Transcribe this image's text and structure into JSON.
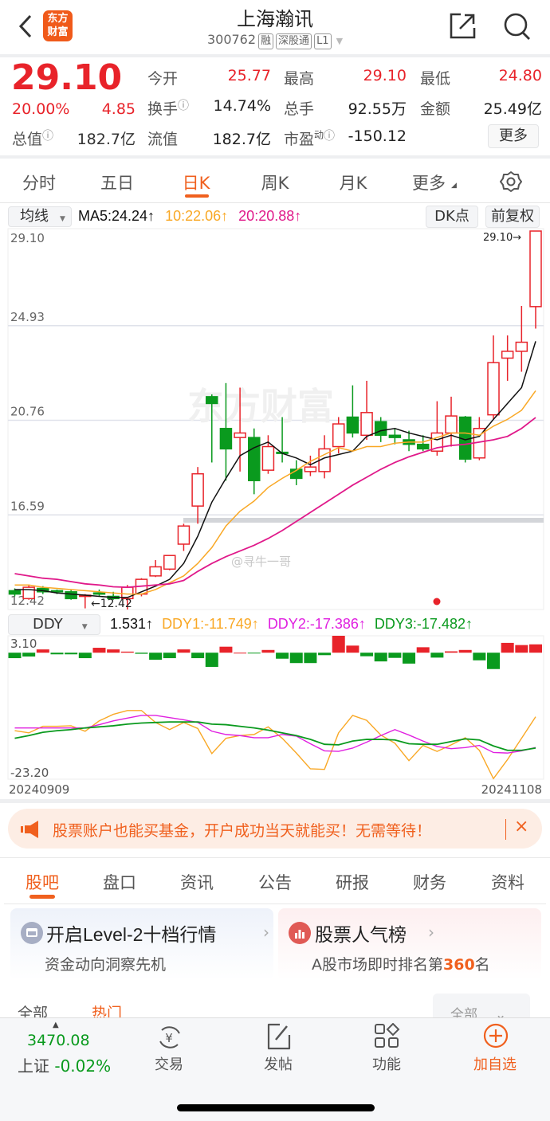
{
  "header": {
    "title": "上海瀚讯",
    "code": "300762",
    "tags": [
      "融",
      "深股通",
      "L1"
    ],
    "logo_text": [
      "东方",
      "财富"
    ]
  },
  "quote": {
    "price": "29.10",
    "change_pct": "20.00%",
    "change": "4.85",
    "rows": [
      [
        {
          "label": "今开",
          "value": "25.77",
          "color": "red"
        },
        {
          "label": "最高",
          "value": "29.10",
          "color": "red"
        },
        {
          "label": "最低",
          "value": "24.80",
          "color": "red"
        }
      ],
      [
        {
          "label": "换手",
          "value": "14.74%",
          "info": true
        },
        {
          "label": "总手",
          "value": "92.55万"
        },
        {
          "label": "金额",
          "value": "25.49亿"
        }
      ],
      [
        {
          "label": "流值",
          "value": "182.7亿"
        },
        {
          "label": "市盈",
          "sup": "动",
          "value": "-150.12",
          "info": true
        }
      ]
    ],
    "total_label": "总值",
    "total_value": "182.7亿",
    "more": "更多"
  },
  "period_tabs": [
    "分时",
    "五日",
    "日K",
    "周K",
    "月K",
    "更多"
  ],
  "active_period": 2,
  "chart_controls": {
    "indicator": "均线",
    "ma5": "MA5:24.24↑",
    "ma10": "10:22.06↑",
    "ma20": "20:20.88↑",
    "dk": "DK点",
    "adjust": "前复权"
  },
  "sub_controls": {
    "indicator": "DDY",
    "ddy": "1.531↑",
    "ddy1": "DDY1:-11.749↑",
    "ddy2": "DDY2:-17.386↑",
    "ddy3": "DDY3:-17.482↑"
  },
  "watermarks": {
    "brand": "东方财富",
    "user": "@寻牛一哥"
  },
  "colors": {
    "up": "#e8232a",
    "down": "#0a9a1e",
    "ma5": "#111111",
    "ma10": "#f9a825",
    "ma20": "#e0198a",
    "ddy1": "#f9a825",
    "ddy2": "#e020e0",
    "ddy3": "#0a9a1e",
    "accent": "#f0601e"
  },
  "chart_data": [
    {
      "type": "candlestick",
      "ylim": [
        12.42,
        29.1
      ],
      "y_ticks": [
        "29.10",
        "24.93",
        "20.76",
        "16.59",
        "12.42"
      ],
      "max_label": "29.10→",
      "min_label": "←12.42",
      "candles": [
        [
          13.25,
          13.35,
          13.0,
          13.1
        ],
        [
          12.9,
          13.5,
          12.85,
          13.4
        ],
        [
          13.35,
          13.45,
          13.1,
          13.2
        ],
        [
          13.25,
          13.3,
          13.1,
          13.2
        ],
        [
          13.2,
          13.3,
          12.85,
          12.9
        ],
        [
          13.05,
          13.1,
          12.47,
          13.05
        ],
        [
          13.15,
          13.3,
          13.0,
          13.1
        ],
        [
          13.0,
          13.2,
          12.85,
          12.9
        ],
        [
          12.9,
          13.5,
          12.42,
          13.4
        ],
        [
          13.1,
          13.8,
          13.0,
          13.75
        ],
        [
          13.9,
          14.6,
          13.85,
          14.3
        ],
        [
          14.2,
          14.8,
          14.15,
          14.8
        ],
        [
          15.3,
          16.2,
          15.0,
          16.1
        ],
        [
          16.98,
          18.7,
          16.2,
          18.4
        ],
        [
          21.8,
          21.9,
          18.9,
          21.5
        ],
        [
          20.4,
          22.4,
          18.1,
          19.5
        ],
        [
          20.0,
          22.2,
          18.5,
          20.2
        ],
        [
          20.0,
          20.4,
          17.5,
          18.1
        ],
        [
          18.56,
          20.1,
          18.4,
          19.6
        ],
        [
          19.35,
          20.9,
          18.9,
          19.3
        ],
        [
          18.6,
          19.0,
          17.9,
          18.2
        ],
        [
          18.5,
          19.2,
          18.3,
          18.7
        ],
        [
          18.5,
          20.1,
          18.2,
          19.5
        ],
        [
          19.6,
          20.9,
          19.3,
          20.6
        ],
        [
          20.9,
          22.3,
          20.0,
          20.2
        ],
        [
          20.1,
          22.5,
          19.9,
          21.1
        ],
        [
          20.7,
          20.9,
          19.8,
          20.1
        ],
        [
          20.1,
          20.4,
          19.7,
          20.0
        ],
        [
          19.9,
          20.3,
          19.4,
          19.7
        ],
        [
          19.7,
          20.1,
          19.4,
          19.5
        ],
        [
          19.4,
          21.6,
          19.2,
          20.2
        ],
        [
          20.2,
          21.8,
          19.6,
          20.95
        ],
        [
          20.9,
          20.95,
          18.9,
          19.05
        ],
        [
          19.1,
          20.9,
          19.0,
          20.4
        ],
        [
          21.0,
          24.5,
          20.8,
          23.3
        ],
        [
          23.5,
          24.5,
          22.5,
          23.8
        ],
        [
          23.8,
          25.8,
          22.9,
          24.2
        ],
        [
          25.77,
          29.1,
          24.8,
          29.1
        ]
      ],
      "ma5": [
        13.3,
        13.3,
        13.25,
        13.15,
        13.1,
        13.05,
        13.0,
        12.95,
        12.95,
        13.2,
        13.45,
        13.75,
        14.45,
        15.65,
        17.15,
        18.2,
        19.2,
        19.55,
        19.8,
        19.3,
        19.1,
        18.8,
        19.1,
        19.25,
        19.4,
        20.05,
        20.3,
        20.4,
        20.2,
        20.05,
        19.9,
        20.1,
        19.9,
        20.05,
        20.8,
        21.5,
        22.2,
        24.24
      ],
      "ma10": [
        13.5,
        13.5,
        13.4,
        13.35,
        13.3,
        13.25,
        13.2,
        13.15,
        13.1,
        13.1,
        13.3,
        13.6,
        13.9,
        14.45,
        15.15,
        16.1,
        16.75,
        17.2,
        17.8,
        18.2,
        18.55,
        18.95,
        19.25,
        19.55,
        19.4,
        19.6,
        19.6,
        19.75,
        19.8,
        19.8,
        20.0,
        20.2,
        20.2,
        20.1,
        20.5,
        20.8,
        21.2,
        22.06
      ],
      "ma20": [
        14.0,
        13.9,
        13.8,
        13.75,
        13.65,
        13.55,
        13.5,
        13.42,
        13.4,
        13.45,
        13.5,
        13.55,
        13.7,
        14.1,
        14.45,
        14.75,
        15.0,
        15.25,
        15.55,
        15.9,
        16.3,
        16.7,
        17.1,
        17.5,
        17.9,
        18.25,
        18.6,
        18.9,
        19.15,
        19.35,
        19.55,
        19.65,
        19.7,
        19.8,
        19.9,
        20.05,
        20.4,
        20.88
      ]
    },
    {
      "type": "bar+line",
      "ylim": [
        -23.2,
        3.1
      ],
      "y_ticks": [
        "3.10",
        "-23.20"
      ],
      "x_labels": [
        "20240909",
        "20241108"
      ],
      "ddy": [
        -1.0,
        -0.7,
        0.6,
        -0.3,
        -0.3,
        -1.0,
        0.9,
        0.6,
        0.2,
        -0.2,
        -1.3,
        -1.0,
        0.6,
        -1.0,
        -2.6,
        1.1,
        0,
        -0.1,
        0.5,
        -1.1,
        -1.9,
        -1.9,
        -0.45,
        3.1,
        1.3,
        -0.65,
        -1.6,
        -0.95,
        -2.0,
        1.0,
        -0.9,
        0.25,
        0.5,
        -1.4,
        -3.0,
        1.8,
        1.4,
        1.531
      ],
      "ddy1": [
        -14.3,
        -14.7,
        -13.5,
        -13.5,
        -13.4,
        -14.4,
        -12.5,
        -11.3,
        -10.6,
        -10.6,
        -12.8,
        -14.1,
        -12.8,
        -13.9,
        -18.5,
        -15.7,
        -15.2,
        -15.0,
        -13.6,
        -15.7,
        -18.4,
        -21.3,
        -21.4,
        -14.7,
        -11.5,
        -12.4,
        -15.1,
        -16.6,
        -19.8,
        -17.0,
        -18.1,
        -16.9,
        -15.6,
        -17.9,
        -23.1,
        -19.6,
        -15.7,
        -11.749
      ],
      "ddy2": [
        -13.8,
        -13.8,
        -13.8,
        -13.8,
        -13.8,
        -13.8,
        -13.2,
        -12.5,
        -12.0,
        -11.5,
        -11.5,
        -11.9,
        -12.3,
        -12.8,
        -14.4,
        -15.0,
        -15.2,
        -15.6,
        -15.6,
        -15.0,
        -15.3,
        -16.7,
        -18.0,
        -18.1,
        -17.5,
        -16.4,
        -15.2,
        -14.1,
        -15.1,
        -16.2,
        -17.2,
        -17.6,
        -17.4,
        -17.0,
        -18.3,
        -18.4,
        -18.0,
        -17.386
      ],
      "ddy3": [
        -15.7,
        -15.2,
        -14.6,
        -14.3,
        -14.1,
        -13.8,
        -13.6,
        -13.4,
        -13.1,
        -12.9,
        -12.8,
        -12.7,
        -12.7,
        -12.7,
        -13.1,
        -13.2,
        -13.5,
        -13.8,
        -14.2,
        -14.7,
        -15.2,
        -15.9,
        -16.8,
        -16.9,
        -16.2,
        -15.9,
        -15.9,
        -16.0,
        -16.7,
        -16.8,
        -16.8,
        -16.3,
        -15.8,
        -16.0,
        -17.1,
        -17.9,
        -17.9,
        -17.482
      ]
    }
  ],
  "banner": {
    "text": "股票账户也能买基金，开户成功当天就能买！无需等待！",
    "close": "×"
  },
  "news_tabs": [
    "股吧",
    "盘口",
    "资讯",
    "公告",
    "研报",
    "财务",
    "资料"
  ],
  "active_news_tab": 0,
  "cards": [
    {
      "title": "开启Level-2十档行情",
      "subtitle": "资金动向洞察先机"
    },
    {
      "title": "股票人气榜",
      "subtitle_pre": "A股市场即时排名第",
      "rank": "360",
      "subtitle_post": "名"
    }
  ],
  "filter": {
    "tabs": [
      "全部",
      "热门"
    ],
    "dropdown": "全部"
  },
  "bottom_bar": {
    "index_value": "3470.08",
    "index_name": "上证",
    "index_change": "-0.02%",
    "items": [
      "交易",
      "发帖",
      "功能",
      "加自选"
    ]
  }
}
